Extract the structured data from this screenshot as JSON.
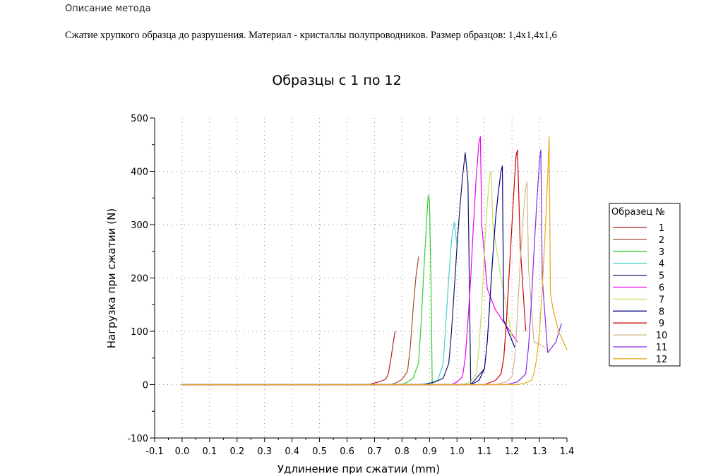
{
  "header": {
    "method_label": "Описание метода",
    "description": "Сжатие хрупкого образца до разрушения. Материал - кристаллы полупроводников. Размер образцов: 1,4x1,4x1,6"
  },
  "chart_data": {
    "type": "line",
    "title": "Образцы с 1 по 12",
    "xlabel": "Удлинение при сжатии (mm)",
    "ylabel": "Нагрузка при сжатии (N)",
    "xlim": [
      -0.1,
      1.4
    ],
    "ylim": [
      -100,
      500
    ],
    "x_ticks": [
      "-0.1",
      "0.0",
      "0.1",
      "0.2",
      "0.3",
      "0.4",
      "0.5",
      "0.6",
      "0.7",
      "0.8",
      "0.9",
      "1.0",
      "1.1",
      "1.2",
      "1.3",
      "1.4"
    ],
    "y_ticks": [
      "-100",
      "0",
      "100",
      "200",
      "300",
      "400",
      "500"
    ],
    "grid": true,
    "legend_title": "Образец №",
    "legend_position": "right",
    "series": [
      {
        "name": "1",
        "color": "#b22222",
        "x": [
          0.0,
          0.68,
          0.7,
          0.72,
          0.74,
          0.75,
          0.76,
          0.77,
          0.775
        ],
        "y": [
          0,
          0,
          3,
          6,
          10,
          20,
          50,
          85,
          100
        ]
      },
      {
        "name": "2",
        "color": "#a0522d",
        "x": [
          0.0,
          0.76,
          0.78,
          0.8,
          0.82,
          0.83,
          0.84,
          0.85,
          0.86
        ],
        "y": [
          0,
          0,
          4,
          10,
          25,
          70,
          140,
          200,
          240
        ]
      },
      {
        "name": "3",
        "color": "#32cd32",
        "x": [
          0.0,
          0.8,
          0.82,
          0.84,
          0.86,
          0.87,
          0.88,
          0.89,
          0.895,
          0.9,
          0.905,
          0.91
        ],
        "y": [
          0,
          0,
          5,
          12,
          40,
          120,
          220,
          310,
          355,
          345,
          200,
          0
        ]
      },
      {
        "name": "4",
        "color": "#48d1cc",
        "x": [
          0.0,
          0.86,
          0.9,
          0.93,
          0.95,
          0.96,
          0.97,
          0.98,
          0.99,
          1.0
        ],
        "y": [
          0,
          0,
          3,
          8,
          40,
          120,
          200,
          270,
          305,
          260
        ]
      },
      {
        "name": "5",
        "color": "#191970",
        "x": [
          0.0,
          0.88,
          0.92,
          0.95,
          0.97,
          0.98,
          0.99,
          1.0,
          1.01,
          1.02,
          1.03,
          1.04,
          1.05,
          1.1
        ],
        "y": [
          0,
          0,
          5,
          12,
          40,
          100,
          180,
          260,
          330,
          390,
          435,
          380,
          0,
          30
        ]
      },
      {
        "name": "6",
        "color": "#ee00ee",
        "x": [
          0.0,
          0.98,
          1.0,
          1.02,
          1.03,
          1.04,
          1.05,
          1.06,
          1.07,
          1.08,
          1.085,
          1.09,
          1.11,
          1.14,
          1.18,
          1.22
        ],
        "y": [
          0,
          0,
          5,
          15,
          50,
          120,
          200,
          300,
          390,
          455,
          465,
          300,
          180,
          140,
          110,
          80
        ]
      },
      {
        "name": "7",
        "color": "#c0e060",
        "x": [
          0.0,
          1.02,
          1.05,
          1.07,
          1.08,
          1.09,
          1.1,
          1.11,
          1.12,
          1.125,
          1.13,
          1.16,
          1.2
        ],
        "y": [
          0,
          0,
          5,
          20,
          70,
          150,
          250,
          340,
          395,
          400,
          300,
          200,
          90
        ]
      },
      {
        "name": "8",
        "color": "#000080",
        "x": [
          0.0,
          1.05,
          1.08,
          1.1,
          1.11,
          1.12,
          1.13,
          1.14,
          1.15,
          1.16,
          1.165,
          1.17,
          1.21
        ],
        "y": [
          0,
          0,
          8,
          30,
          80,
          160,
          240,
          310,
          360,
          400,
          410,
          120,
          70
        ]
      },
      {
        "name": "9",
        "color": "#cc0000",
        "x": [
          0.0,
          1.1,
          1.14,
          1.16,
          1.17,
          1.18,
          1.19,
          1.2,
          1.21,
          1.215,
          1.22,
          1.23,
          1.25
        ],
        "y": [
          0,
          0,
          8,
          20,
          50,
          120,
          210,
          300,
          390,
          430,
          440,
          260,
          100
        ]
      },
      {
        "name": "10",
        "color": "#d2b48c",
        "x": [
          0.0,
          1.14,
          1.18,
          1.2,
          1.21,
          1.22,
          1.23,
          1.24,
          1.25,
          1.255,
          1.26,
          1.28,
          1.32
        ],
        "y": [
          0,
          0,
          5,
          15,
          50,
          130,
          230,
          310,
          370,
          380,
          220,
          80,
          70
        ]
      },
      {
        "name": "11",
        "color": "#8a2be2",
        "x": [
          0.0,
          1.18,
          1.22,
          1.25,
          1.26,
          1.27,
          1.28,
          1.29,
          1.3,
          1.305,
          1.31,
          1.33,
          1.36,
          1.38
        ],
        "y": [
          0,
          0,
          5,
          20,
          70,
          150,
          250,
          340,
          420,
          440,
          200,
          60,
          80,
          115
        ]
      },
      {
        "name": "12",
        "color": "#e6a817",
        "x": [
          0.0,
          1.22,
          1.25,
          1.27,
          1.28,
          1.29,
          1.3,
          1.31,
          1.32,
          1.33,
          1.335,
          1.34,
          1.35,
          1.37,
          1.4
        ],
        "y": [
          0,
          0,
          3,
          8,
          20,
          50,
          100,
          180,
          280,
          390,
          465,
          170,
          140,
          100,
          65
        ]
      }
    ]
  }
}
